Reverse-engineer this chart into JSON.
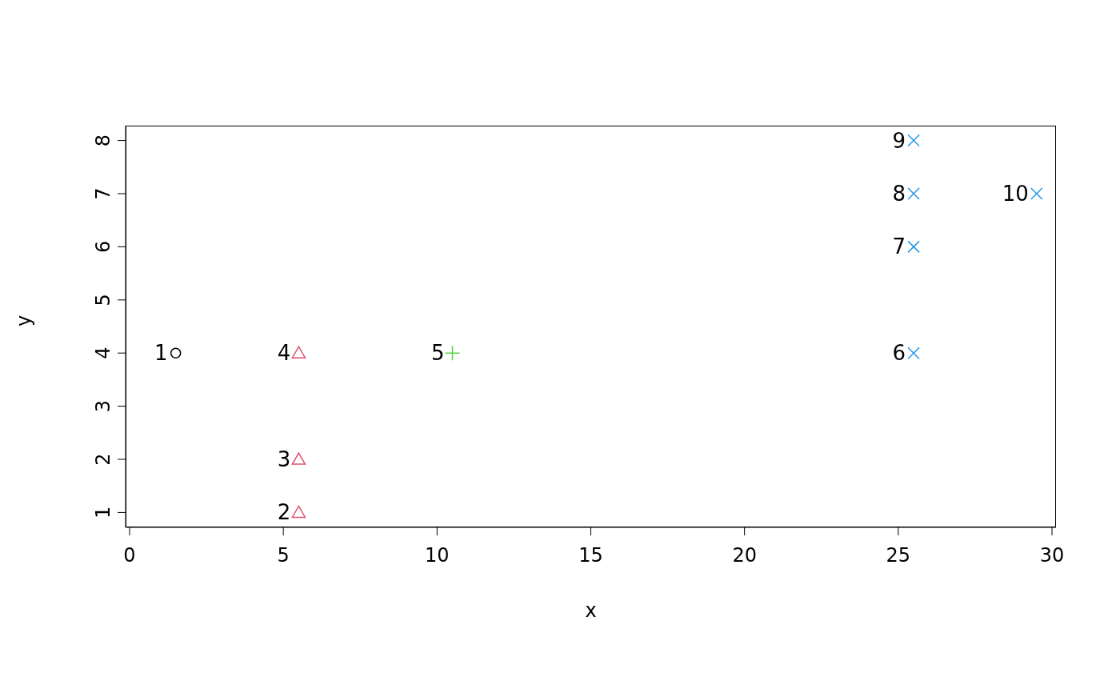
{
  "chart_data": {
    "type": "scatter",
    "xlabel": "x",
    "ylabel": "y",
    "xlim": [
      -0.13,
      30.13
    ],
    "xticks": [
      0,
      5,
      10,
      15,
      20,
      25,
      30
    ],
    "ylim": [
      0.72,
      8.28
    ],
    "yticks": [
      1,
      2,
      3,
      4,
      5,
      6,
      7,
      8
    ],
    "grid": false,
    "legend": false,
    "series": [
      {
        "color": "#000000",
        "marker": "circle",
        "x": [
          1.5
        ],
        "values": [
          4
        ]
      },
      {
        "color": "#df536b",
        "marker": "triangle",
        "x": [
          5.5,
          5.5,
          5.5
        ],
        "values": [
          1,
          2,
          4
        ]
      },
      {
        "color": "#61d04f",
        "marker": "plus",
        "x": [
          10.5
        ],
        "values": [
          4
        ]
      },
      {
        "color": "#2297e6",
        "marker": "cross",
        "x": [
          25.5,
          25.5,
          25.5,
          25.5,
          29.5
        ],
        "values": [
          4,
          6,
          7,
          8,
          7
        ]
      }
    ],
    "annotations": [
      {
        "text": "1",
        "x": 1.5,
        "y": 4
      },
      {
        "text": "2",
        "x": 5.5,
        "y": 1
      },
      {
        "text": "3",
        "x": 5.5,
        "y": 2
      },
      {
        "text": "4",
        "x": 5.5,
        "y": 4
      },
      {
        "text": "5",
        "x": 10.5,
        "y": 4
      },
      {
        "text": "6",
        "x": 25.5,
        "y": 4
      },
      {
        "text": "7",
        "x": 25.5,
        "y": 6
      },
      {
        "text": "8",
        "x": 25.5,
        "y": 7
      },
      {
        "text": "9",
        "x": 25.5,
        "y": 8
      },
      {
        "text": "10",
        "x": 29.5,
        "y": 7
      }
    ]
  }
}
